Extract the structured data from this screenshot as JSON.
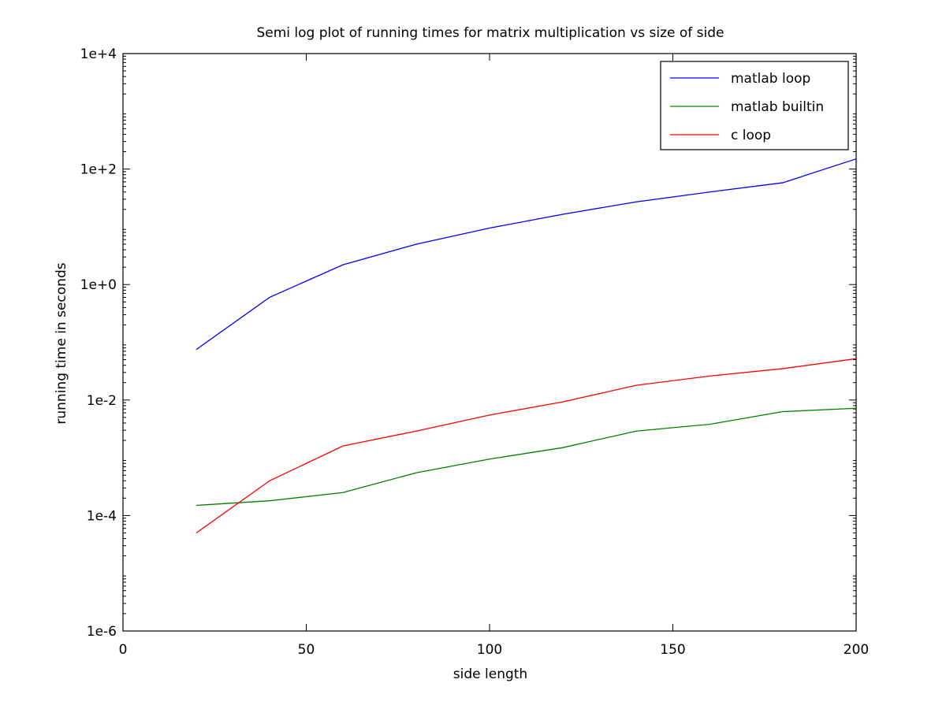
{
  "chart_data": {
    "type": "line",
    "title": "Semi log plot of running times for matrix multiplication vs size of side",
    "xlabel": "side length",
    "ylabel": "running time in seconds",
    "xlim": [
      0,
      200
    ],
    "ylim": [
      1e-06,
      10000
    ],
    "yscale": "log",
    "grid": false,
    "legend_position": "top-right",
    "x_ticks": [
      0,
      50,
      100,
      150,
      200
    ],
    "x_tick_labels": [
      "0",
      "50",
      "100",
      "150",
      "200"
    ],
    "y_ticks": [
      1e-06,
      0.0001,
      0.01,
      1,
      100,
      10000
    ],
    "y_tick_labels": [
      "1e-6",
      "1e-4",
      "1e-2",
      "1e+0",
      "1e+2",
      "1e+4"
    ],
    "x": [
      20,
      40,
      60,
      80,
      100,
      120,
      140,
      160,
      180,
      200
    ],
    "series": [
      {
        "name": "matlab loop",
        "color": "#0000ff",
        "values": [
          0.075,
          0.6,
          2.2,
          5.0,
          9.5,
          16.5,
          27,
          40,
          58,
          150
        ]
      },
      {
        "name": "matlab builtin",
        "color": "#008000",
        "values": [
          0.00015,
          0.00018,
          0.00025,
          0.00055,
          0.00095,
          0.0015,
          0.0029,
          0.0038,
          0.0063,
          0.0072
        ]
      },
      {
        "name": "c loop",
        "color": "#ff0000",
        "values": [
          5e-05,
          0.0004,
          0.0016,
          0.0029,
          0.0055,
          0.0093,
          0.018,
          0.026,
          0.035,
          0.052
        ]
      }
    ]
  }
}
